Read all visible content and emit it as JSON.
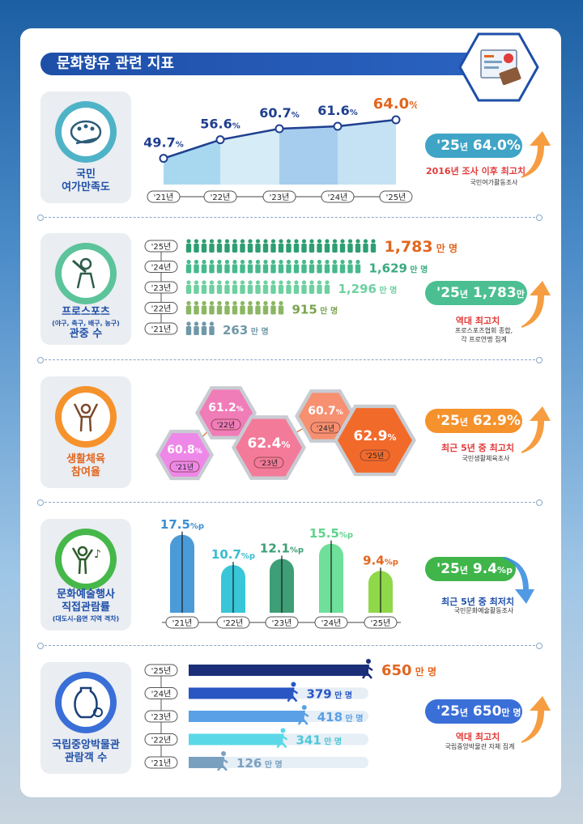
{
  "title": "문화향유 관련 지표",
  "sections": {
    "leisure": {
      "label_line1": "국민",
      "label_line2": "여가만족도",
      "pill_year": "'25",
      "pill_nyeon": "년",
      "pill_value": "64.0",
      "pill_unit": "%",
      "note": "2016년 조사 이후 최고치",
      "source": "국민여가활동조사"
    },
    "prosports": {
      "label_line1": "프로스포츠",
      "label_sub": "(야구, 축구, 배구, 농구)",
      "label_line2": "관중 수",
      "pill_year": "'25",
      "pill_nyeon": "년",
      "pill_value": "1,783",
      "pill_unit": "만 명",
      "note": "역대 최고치",
      "source_line1": "프로스포츠협회 종합,",
      "source_line2": "각 프로연맹 집계"
    },
    "sports": {
      "label_line1": "생활체육",
      "label_line2": "참여율",
      "pill_year": "'25",
      "pill_nyeon": "년",
      "pill_value": "62.9",
      "pill_unit": "%",
      "note": "최근 5년 중 최고치",
      "source": "국민생활체육조사"
    },
    "arts": {
      "label_line1": "문화예술행사",
      "label_line2": "직접관람률",
      "label_sub": "(대도시-읍면 지역 격차)",
      "pill_year": "'25",
      "pill_nyeon": "년",
      "pill_value": "9.4",
      "pill_unit": "%p",
      "note": "최근 5년 중 최저치",
      "source": "국민문화예술활동조사"
    },
    "museum": {
      "label_line1": "국립중앙박물관",
      "label_line2": "관람객 수",
      "pill_year": "'25",
      "pill_nyeon": "년",
      "pill_value": "650",
      "pill_unit": "만 명",
      "note": "역대 최고치",
      "source": "국립중앙박물관 자체 집계"
    }
  },
  "chart_data": [
    {
      "type": "area",
      "categories": [
        "'21년",
        "'22년",
        "'23년",
        "'24년",
        "'25년"
      ],
      "values": [
        49.7,
        56.6,
        60.7,
        61.6,
        64.0
      ],
      "labels": [
        "49.7",
        "56.6",
        "60.7",
        "61.6",
        "64.0"
      ],
      "unit": "%",
      "colors": [
        "#a8d8f0",
        "#d6ecf6",
        "#a6cdee",
        "#c4e2f4",
        "#cfe6f6"
      ]
    },
    {
      "type": "bar",
      "categories": [
        "'25년",
        "'24년",
        "'23년",
        "'22년",
        "'21년"
      ],
      "values": [
        1783,
        1629,
        1296,
        915,
        263
      ],
      "labels": [
        "1,783",
        "1,629",
        "1,296",
        "915",
        "263"
      ],
      "unit": "만 명",
      "colors": [
        "#2e9e73",
        "#46b98d",
        "#6ed0a1",
        "#8bb662",
        "#6f98a8"
      ],
      "label_colors": [
        "#e2661f",
        "#3aaa80",
        "#6ed0a1",
        "#7aa54f",
        "#6f98a8"
      ]
    },
    {
      "type": "scatter",
      "categories": [
        "'21년",
        "'22년",
        "'23년",
        "'24년",
        "'25년"
      ],
      "values": [
        60.8,
        61.2,
        62.4,
        60.7,
        62.9
      ],
      "labels": [
        "60.8",
        "61.2",
        "62.4",
        "60.7",
        "62.9"
      ],
      "unit": "%",
      "colors": [
        "#ee88e8",
        "#f07cb8",
        "#f47a9a",
        "#f69070",
        "#f26a2a"
      ]
    },
    {
      "type": "bar",
      "categories": [
        "'21년",
        "'22년",
        "'23년",
        "'24년",
        "'25년"
      ],
      "values": [
        17.5,
        10.7,
        12.1,
        15.5,
        9.4
      ],
      "labels": [
        "17.5",
        "10.7",
        "12.1",
        "15.5",
        "9.4"
      ],
      "unit": "%p",
      "colors": [
        "#4a9bd8",
        "#38c6d8",
        "#3e9e76",
        "#6ee09a",
        "#8fd84a"
      ],
      "label_colors": [
        "#3e8fd0",
        "#38bcd0",
        "#3e9e76",
        "#5ed48c",
        "#e2661f"
      ]
    },
    {
      "type": "bar",
      "categories": [
        "'25년",
        "'24년",
        "'23년",
        "'22년",
        "'21년"
      ],
      "values": [
        650,
        379,
        418,
        341,
        126
      ],
      "labels": [
        "650",
        "379",
        "418",
        "341",
        "126"
      ],
      "unit": "만 명",
      "colors": [
        "#1a2f78",
        "#2a56c4",
        "#5aa0e6",
        "#5ad8e8",
        "#7aa0c0"
      ],
      "label_colors": [
        "#e2661f",
        "#2a56c4",
        "#5aa0e6",
        "#4cc8d8",
        "#7aa0c0"
      ]
    }
  ]
}
